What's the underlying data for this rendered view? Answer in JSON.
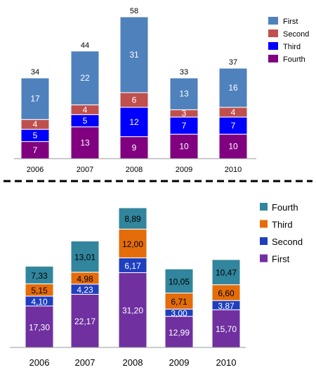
{
  "chart_data": [
    {
      "type": "bar",
      "stacked": true,
      "categories": [
        "2006",
        "2007",
        "2008",
        "2009",
        "2010"
      ],
      "ylim": [
        0,
        58
      ],
      "series": [
        {
          "name": "Fourth",
          "values": [
            7,
            13,
            9,
            10,
            10
          ],
          "color": "#800080",
          "label_color": "#ffffff"
        },
        {
          "name": "Third",
          "values": [
            5,
            5,
            12,
            7,
            7
          ],
          "color": "#0000ff",
          "label_color": "#ffffff"
        },
        {
          "name": "Second",
          "values": [
            4,
            4,
            6,
            3,
            4
          ],
          "color": "#c0504d",
          "label_color": "#ffffff"
        },
        {
          "name": "First",
          "values": [
            17,
            22,
            31,
            13,
            16
          ],
          "color": "#4f81bd",
          "label_color": "#ffffff"
        }
      ],
      "value_labels": [
        "7",
        "13",
        "9",
        "10",
        "10",
        "5",
        "5",
        "12",
        "7",
        "7",
        "4",
        "4",
        "6",
        "3",
        "4",
        "17",
        "22",
        "31",
        "13",
        "16"
      ],
      "totals": [
        "34",
        "44",
        "58",
        "33",
        "37"
      ],
      "legend": [
        "First",
        "Second",
        "Third",
        "Fourth"
      ],
      "legend_position": "top-right",
      "grid": false
    },
    {
      "type": "bar",
      "stacked": true,
      "categories": [
        "2006",
        "2007",
        "2008",
        "2009",
        "2010"
      ],
      "ylim": [
        0,
        58.27
      ],
      "series": [
        {
          "name": "First",
          "values": [
            17.3,
            22.17,
            31.2,
            12.99,
            15.7
          ],
          "color": "#7030a0",
          "label_color": "#ffffff"
        },
        {
          "name": "Second",
          "values": [
            4.1,
            4.23,
            6.17,
            3.0,
            3.87
          ],
          "color": "#1f3fbf",
          "label_color": "#ffffff"
        },
        {
          "name": "Third",
          "values": [
            5.15,
            4.98,
            12.0,
            6.71,
            6.6
          ],
          "color": "#e46c0a",
          "label_color": "#000000"
        },
        {
          "name": "Fourth",
          "values": [
            7.33,
            13.01,
            8.89,
            10.05,
            10.47
          ],
          "color": "#31859c",
          "label_color": "#000000"
        }
      ],
      "value_labels": [
        "17,30",
        "22,17",
        "31,20",
        "12,99",
        "15,70",
        "4,10",
        "4,23",
        "6,17",
        "3,00",
        "3,87",
        "5,15",
        "4,98",
        "12,00",
        "6,71",
        "6,60",
        "7,33",
        "13,01",
        "8,89",
        "10,05",
        "10,47"
      ],
      "legend": [
        "Fourth",
        "Third",
        "Second",
        "First"
      ],
      "legend_position": "top-right",
      "grid": false
    }
  ]
}
